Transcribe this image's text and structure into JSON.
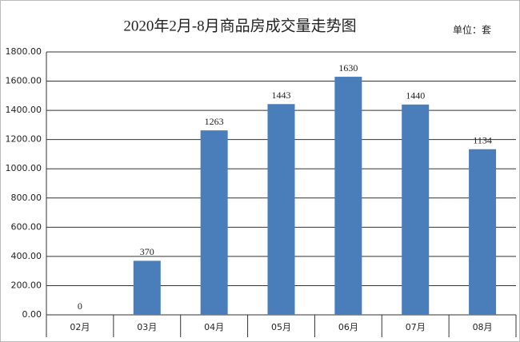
{
  "chart_data": {
    "type": "bar",
    "title": "2020年2月-8月商品房成交量走势图",
    "unit": "单位：套",
    "categories": [
      "02月",
      "03月",
      "04月",
      "05月",
      "06月",
      "07月",
      "08月"
    ],
    "values": [
      0,
      370,
      1263,
      1443,
      1630,
      1440,
      1134
    ],
    "color": "#4a7ebb",
    "ylim": [
      0,
      1800
    ],
    "yticks": [
      {
        "value": 0,
        "label": "0.00"
      },
      {
        "value": 200,
        "label": "200.00"
      },
      {
        "value": 400,
        "label": "400.00"
      },
      {
        "value": 600,
        "label": "600.00"
      },
      {
        "value": 800,
        "label": "800.00"
      },
      {
        "value": 1000,
        "label": "1000.00"
      },
      {
        "value": 1200,
        "label": "1200.00"
      },
      {
        "value": 1400,
        "label": "1400.00"
      },
      {
        "value": 1600,
        "label": "1600.00"
      },
      {
        "value": 1800,
        "label": "1800.00"
      }
    ],
    "grid": true
  }
}
